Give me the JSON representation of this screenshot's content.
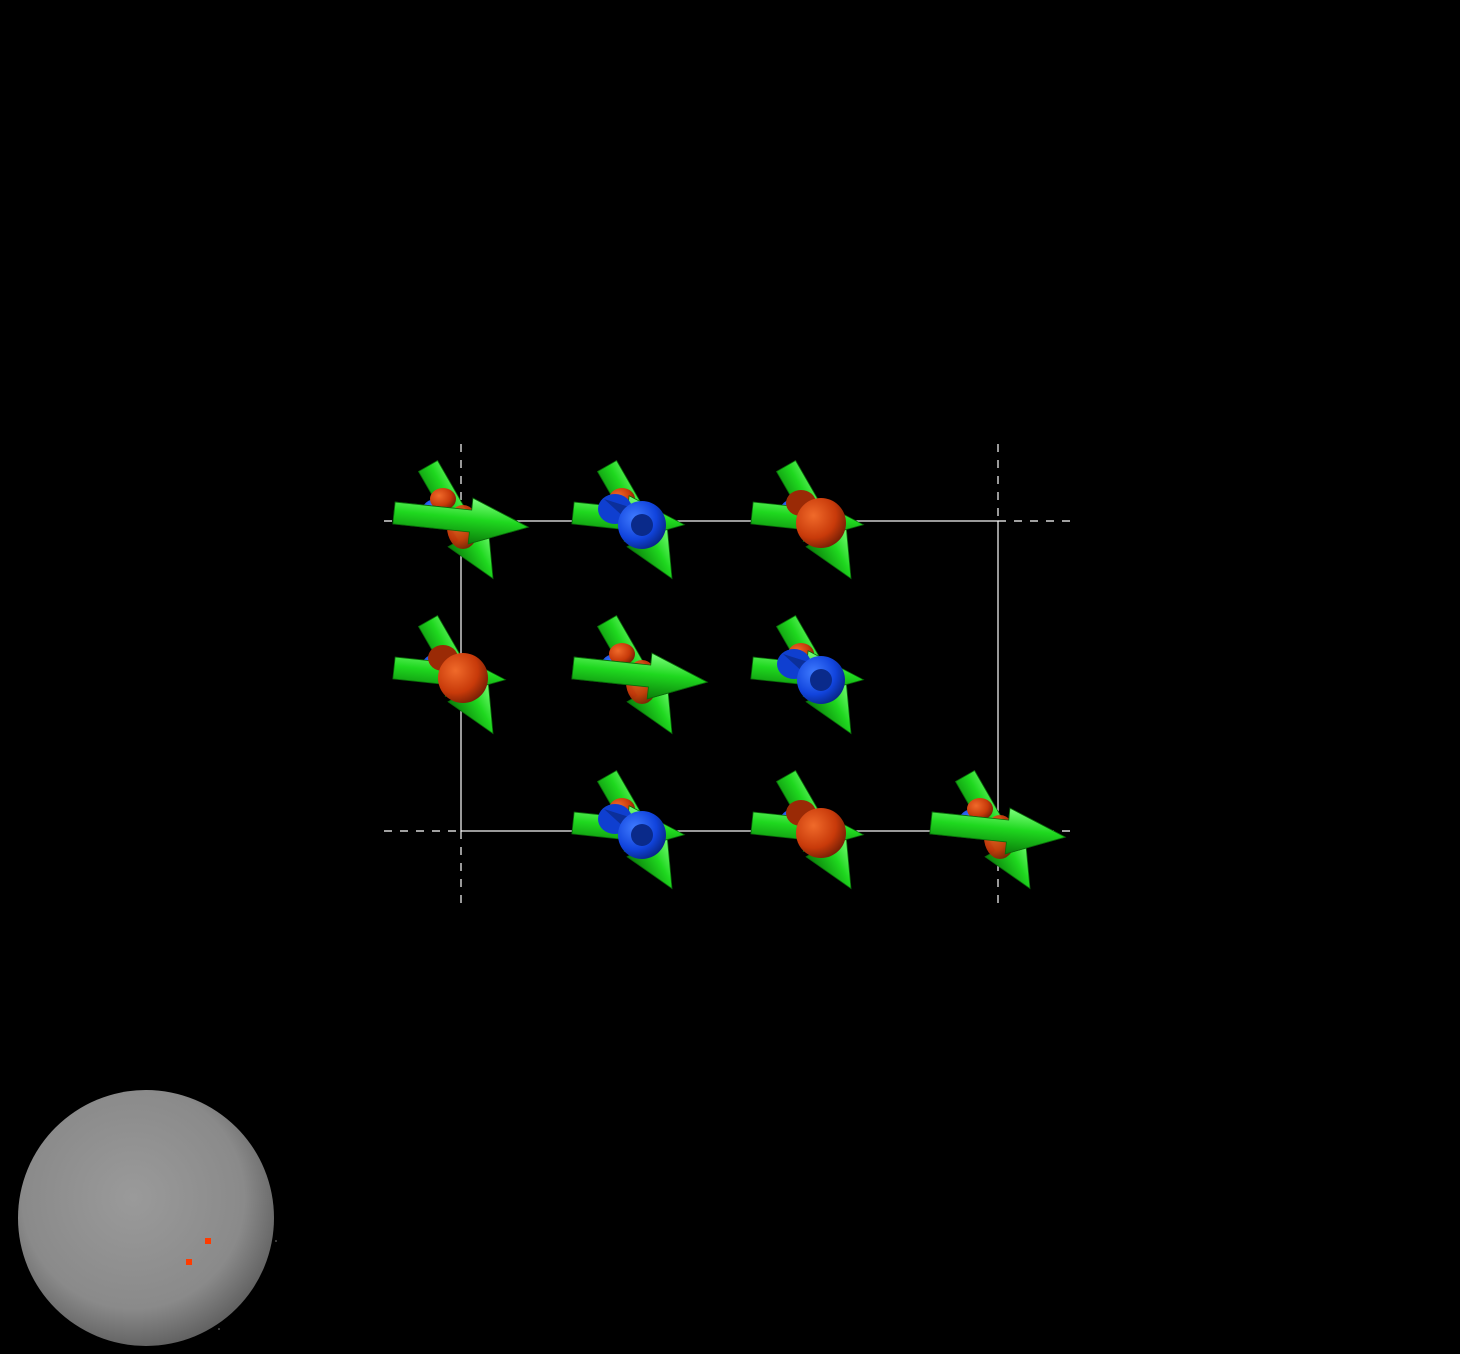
{
  "scene": {
    "background": "#000000",
    "colors": {
      "green": "#1fd81f",
      "green_dark": "#0a8f0a",
      "blue": "#1144dd",
      "blue_dark": "#082a99",
      "red": "#c83a0a",
      "red_dark": "#7a1e04",
      "cell_edge": "#ffffff",
      "sphere": "#8c8c8c",
      "sphere_marker": "#ff3b00"
    },
    "magnetic_sites": [
      {
        "row": 0,
        "col": 0,
        "front_arrow": "green",
        "spin": "red-toward"
      },
      {
        "row": 0,
        "col": 1,
        "front_arrow": "blue",
        "spin": "blue-toward"
      },
      {
        "row": 0,
        "col": 2,
        "front_arrow": "red",
        "spin": "red-toward"
      },
      {
        "row": 1,
        "col": 0,
        "front_arrow": "red",
        "spin": "red-toward"
      },
      {
        "row": 1,
        "col": 1,
        "front_arrow": "green",
        "spin": "red-toward"
      },
      {
        "row": 1,
        "col": 2,
        "front_arrow": "blue",
        "spin": "blue-toward"
      },
      {
        "row": 2,
        "col": 1,
        "front_arrow": "blue",
        "spin": "blue-toward"
      },
      {
        "row": 2,
        "col": 2,
        "front_arrow": "red",
        "spin": "red-toward"
      },
      {
        "row": 2,
        "col": 3,
        "front_arrow": "green",
        "spin": "red-toward"
      }
    ],
    "orientation_widget": {
      "icon": "sphere-axes-icon",
      "markers": 2
    }
  }
}
